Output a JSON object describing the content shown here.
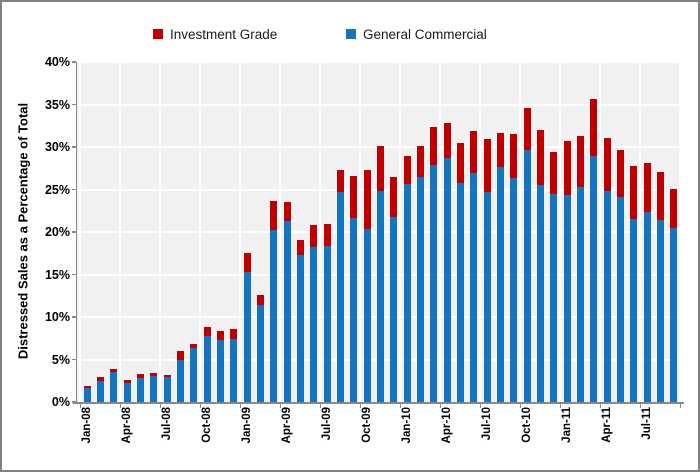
{
  "legend": {
    "items": [
      {
        "label": "Investment Grade",
        "color": "#C00000"
      },
      {
        "label": "General Commercial",
        "color": "#1574BF"
      }
    ]
  },
  "y_axis": {
    "title": "Distressed Sales as a Percentage of Total",
    "tick_labels": [
      "0%",
      "5%",
      "10%",
      "15%",
      "20%",
      "25%",
      "30%",
      "35%",
      "40%"
    ]
  },
  "chart_data": {
    "type": "bar",
    "stacked": true,
    "title": "",
    "xlabel": "",
    "ylabel": "Distressed Sales as a Percentage of Total",
    "ylim": [
      0,
      40
    ],
    "ytick_step": 5,
    "ytick_suffix": "%",
    "grid": true,
    "legend_position": "top",
    "plot_bg": "#F1F1F1",
    "gridline_color": "#FFFFFF",
    "axis_color": "#898989",
    "x_label_every": 3,
    "categories": [
      "Jan-08",
      "Feb-08",
      "Mar-08",
      "Apr-08",
      "May-08",
      "Jun-08",
      "Jul-08",
      "Aug-08",
      "Sep-08",
      "Oct-08",
      "Nov-08",
      "Dec-08",
      "Jan-09",
      "Feb-09",
      "Mar-09",
      "Apr-09",
      "May-09",
      "Jun-09",
      "Jul-09",
      "Aug-09",
      "Sep-09",
      "Oct-09",
      "Nov-09",
      "Dec-09",
      "Jan-10",
      "Feb-10",
      "Mar-10",
      "Apr-10",
      "May-10",
      "Jun-10",
      "Jul-10",
      "Aug-10",
      "Sep-10",
      "Oct-10",
      "Nov-10",
      "Dec-10",
      "Jan-11",
      "Feb-11",
      "Mar-11",
      "Apr-11",
      "May-11",
      "Jun-11",
      "Jul-11",
      "Aug-11",
      "Sep-11"
    ],
    "series": [
      {
        "name": "Investment Grade",
        "color": "#C00000",
        "values": [
          0.3,
          0.4,
          0.4,
          0.4,
          0.5,
          0.3,
          0.3,
          1.0,
          0.5,
          1.0,
          1.1,
          1.2,
          2.2,
          1.2,
          3.5,
          2.2,
          1.8,
          2.6,
          2.6,
          2.6,
          5.0,
          6.9,
          5.3,
          4.7,
          3.4,
          3.6,
          4.4,
          4.1,
          4.7,
          5.0,
          6.2,
          4.1,
          5.2,
          4.9,
          6.5,
          4.9,
          6.3,
          6.0,
          6.8,
          6.3,
          5.6,
          6.3,
          5.7,
          5.7,
          4.6
        ]
      },
      {
        "name": "General Commercial",
        "color": "#1574BF",
        "values": [
          1.6,
          2.5,
          3.5,
          2.2,
          2.8,
          3.1,
          2.9,
          5.0,
          6.3,
          7.8,
          7.3,
          7.4,
          15.3,
          11.4,
          20.2,
          21.3,
          17.3,
          18.2,
          18.3,
          24.7,
          21.6,
          20.4,
          24.8,
          21.8,
          25.6,
          26.5,
          27.9,
          28.7,
          25.8,
          26.9,
          24.7,
          27.6,
          26.3,
          29.7,
          25.5,
          24.5,
          24.4,
          25.3,
          28.9,
          24.8,
          24.1,
          21.5,
          22.4,
          21.4,
          20.5
        ]
      }
    ]
  }
}
